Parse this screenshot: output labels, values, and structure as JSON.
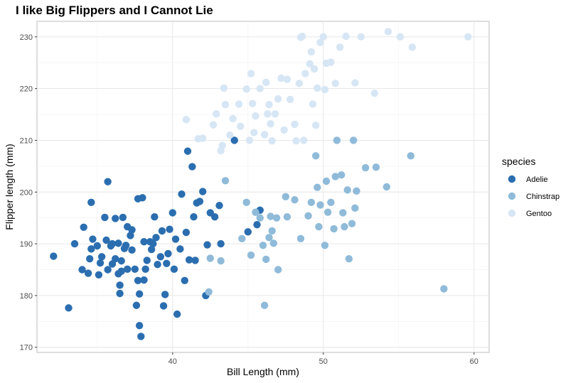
{
  "chart_data": {
    "type": "scatter",
    "title": "I like Big Flippers and I Cannot Lie",
    "xlabel": "Bill Length (mm)",
    "ylabel": "Flipper length (mm)",
    "xlim": [
      31.0,
      61.0
    ],
    "ylim": [
      169.0,
      233.0
    ],
    "xticks": [
      40,
      50,
      60
    ],
    "yticks": [
      170,
      180,
      190,
      200,
      210,
      220,
      230
    ],
    "grid": true,
    "legend": {
      "title": "species",
      "position": "right"
    },
    "series": [
      {
        "name": "Adelie",
        "color": "#2b6eb0",
        "points": [
          [
            32.1,
            187.6
          ],
          [
            33.1,
            177.6
          ],
          [
            33.5,
            190.0
          ],
          [
            34.0,
            185.0
          ],
          [
            34.1,
            193.2
          ],
          [
            34.4,
            184.3
          ],
          [
            34.5,
            187.1
          ],
          [
            34.6,
            189.0
          ],
          [
            34.6,
            198.0
          ],
          [
            34.7,
            190.9
          ],
          [
            35.0,
            189.6
          ],
          [
            35.1,
            184.0
          ],
          [
            35.2,
            186.3
          ],
          [
            35.3,
            187.5
          ],
          [
            35.5,
            195.1
          ],
          [
            35.6,
            190.7
          ],
          [
            35.7,
            202.0
          ],
          [
            35.7,
            185.0
          ],
          [
            35.9,
            189.6
          ],
          [
            36.0,
            186.1
          ],
          [
            36.0,
            190.0
          ],
          [
            36.2,
            187.1
          ],
          [
            36.2,
            194.9
          ],
          [
            36.4,
            184.2
          ],
          [
            36.4,
            190.1
          ],
          [
            36.5,
            182.0
          ],
          [
            36.5,
            180.4
          ],
          [
            36.6,
            184.7
          ],
          [
            36.6,
            186.7
          ],
          [
            36.7,
            195.1
          ],
          [
            36.8,
            189.1
          ],
          [
            36.9,
            189.7
          ],
          [
            37.0,
            193.3
          ],
          [
            37.0,
            185.1
          ],
          [
            37.2,
            191.6
          ],
          [
            37.3,
            188.8
          ],
          [
            37.3,
            192.7
          ],
          [
            37.5,
            185.1
          ],
          [
            37.6,
            178.1
          ],
          [
            37.7,
            198.7
          ],
          [
            37.7,
            182.9
          ],
          [
            37.8,
            174.2
          ],
          [
            37.8,
            180.3
          ],
          [
            37.9,
            172.1
          ],
          [
            38.0,
            198.9
          ],
          [
            38.1,
            190.4
          ],
          [
            38.1,
            183.0
          ],
          [
            38.2,
            185.1
          ],
          [
            38.3,
            186.8
          ],
          [
            38.5,
            190.4
          ],
          [
            38.6,
            188.9
          ],
          [
            38.7,
            190.0
          ],
          [
            38.8,
            195.2
          ],
          [
            38.9,
            191.2
          ],
          [
            39.0,
            186.0
          ],
          [
            39.2,
            187.5
          ],
          [
            39.3,
            192.5
          ],
          [
            39.4,
            178.0
          ],
          [
            39.5,
            180.2
          ],
          [
            39.6,
            186.2
          ],
          [
            39.7,
            188.1
          ],
          [
            39.8,
            192.8
          ],
          [
            40.0,
            196.0
          ],
          [
            40.1,
            185.1
          ],
          [
            40.2,
            190.9
          ],
          [
            40.3,
            176.4
          ],
          [
            40.5,
            189.0
          ],
          [
            40.6,
            199.6
          ],
          [
            40.8,
            182.9
          ],
          [
            40.9,
            192.2
          ],
          [
            41.0,
            207.9
          ],
          [
            41.1,
            186.9
          ],
          [
            41.3,
            204.9
          ],
          [
            41.4,
            195.2
          ],
          [
            41.5,
            186.8
          ],
          [
            41.6,
            197.9
          ],
          [
            41.8,
            198.2
          ],
          [
            42.0,
            200.1
          ],
          [
            42.2,
            180.0
          ],
          [
            42.3,
            189.8
          ],
          [
            42.5,
            196.0
          ],
          [
            42.8,
            195.2
          ],
          [
            43.1,
            197.4
          ],
          [
            43.2,
            190.0
          ],
          [
            44.1,
            210.0
          ],
          [
            45.0,
            192.3
          ],
          [
            45.6,
            193.7
          ],
          [
            45.8,
            196.5
          ]
        ]
      },
      {
        "name": "Chinstrap",
        "color": "#8fbbd9",
        "points": [
          [
            42.4,
            180.7
          ],
          [
            42.5,
            187.2
          ],
          [
            43.2,
            186.7
          ],
          [
            43.5,
            202.2
          ],
          [
            44.6,
            191.0
          ],
          [
            44.9,
            198.0
          ],
          [
            45.2,
            187.8
          ],
          [
            45.5,
            196.1
          ],
          [
            45.8,
            195.0
          ],
          [
            46.0,
            189.7
          ],
          [
            46.1,
            178.1
          ],
          [
            46.2,
            187.0
          ],
          [
            46.4,
            191.2
          ],
          [
            46.5,
            195.3
          ],
          [
            46.6,
            192.5
          ],
          [
            46.7,
            190.1
          ],
          [
            46.9,
            195.0
          ],
          [
            47.0,
            185.0
          ],
          [
            47.5,
            199.1
          ],
          [
            47.6,
            195.2
          ],
          [
            48.1,
            198.5
          ],
          [
            48.5,
            191.0
          ],
          [
            49.0,
            195.4
          ],
          [
            49.2,
            198.0
          ],
          [
            49.5,
            207.0
          ],
          [
            49.6,
            200.9
          ],
          [
            49.7,
            193.3
          ],
          [
            49.8,
            197.5
          ],
          [
            50.1,
            189.7
          ],
          [
            50.2,
            202.1
          ],
          [
            50.3,
            196.1
          ],
          [
            50.5,
            198.0
          ],
          [
            50.7,
            192.9
          ],
          [
            50.8,
            203.0
          ],
          [
            50.9,
            210.0
          ],
          [
            51.2,
            203.3
          ],
          [
            51.3,
            196.0
          ],
          [
            51.4,
            193.3
          ],
          [
            51.6,
            200.4
          ],
          [
            51.7,
            187.1
          ],
          [
            51.9,
            193.9
          ],
          [
            52.0,
            210.0
          ],
          [
            52.1,
            196.9
          ],
          [
            52.2,
            200.2
          ],
          [
            52.8,
            204.7
          ],
          [
            53.5,
            204.8
          ],
          [
            54.2,
            201.0
          ],
          [
            55.8,
            207.0
          ],
          [
            58.0,
            181.3
          ]
        ]
      },
      {
        "name": "Gentoo",
        "color": "#d6e6f4",
        "points": [
          [
            40.9,
            214.0
          ],
          [
            41.7,
            210.3
          ],
          [
            42.0,
            210.4
          ],
          [
            42.7,
            213.0
          ],
          [
            42.9,
            215.1
          ],
          [
            43.2,
            208.0
          ],
          [
            43.3,
            209.0
          ],
          [
            43.4,
            220.1
          ],
          [
            43.5,
            216.9
          ],
          [
            43.8,
            211.0
          ],
          [
            44.0,
            214.2
          ],
          [
            44.4,
            217.0
          ],
          [
            44.5,
            212.7
          ],
          [
            44.9,
            219.9
          ],
          [
            45.1,
            210.0
          ],
          [
            45.2,
            222.9
          ],
          [
            45.3,
            217.1
          ],
          [
            45.4,
            211.5
          ],
          [
            45.5,
            214.7
          ],
          [
            45.8,
            220.0
          ],
          [
            46.1,
            211.1
          ],
          [
            46.2,
            221.2
          ],
          [
            46.3,
            215.1
          ],
          [
            46.4,
            216.9
          ],
          [
            46.5,
            213.2
          ],
          [
            46.6,
            209.9
          ],
          [
            46.8,
            215.1
          ],
          [
            47.0,
            218.0
          ],
          [
            47.2,
            222.0
          ],
          [
            47.4,
            212.0
          ],
          [
            47.6,
            221.8
          ],
          [
            47.8,
            217.9
          ],
          [
            48.1,
            213.1
          ],
          [
            48.2,
            209.9
          ],
          [
            48.4,
            221.0
          ],
          [
            48.5,
            229.9
          ],
          [
            48.6,
            230.1
          ],
          [
            48.7,
            210.0
          ],
          [
            48.8,
            222.9
          ],
          [
            49.1,
            224.8
          ],
          [
            49.2,
            227.1
          ],
          [
            49.3,
            217.0
          ],
          [
            49.4,
            223.8
          ],
          [
            49.5,
            212.9
          ],
          [
            49.6,
            220.1
          ],
          [
            49.8,
            228.9
          ],
          [
            50.0,
            230.0
          ],
          [
            50.1,
            219.8
          ],
          [
            50.2,
            224.9
          ],
          [
            50.5,
            225.1
          ],
          [
            50.8,
            221.0
          ],
          [
            51.1,
            228.0
          ],
          [
            51.5,
            230.1
          ],
          [
            52.1,
            221.1
          ],
          [
            52.5,
            230.0
          ],
          [
            53.4,
            219.1
          ],
          [
            54.3,
            231.0
          ],
          [
            55.1,
            230.0
          ],
          [
            55.9,
            228.0
          ],
          [
            59.6,
            230.0
          ]
        ]
      }
    ]
  }
}
